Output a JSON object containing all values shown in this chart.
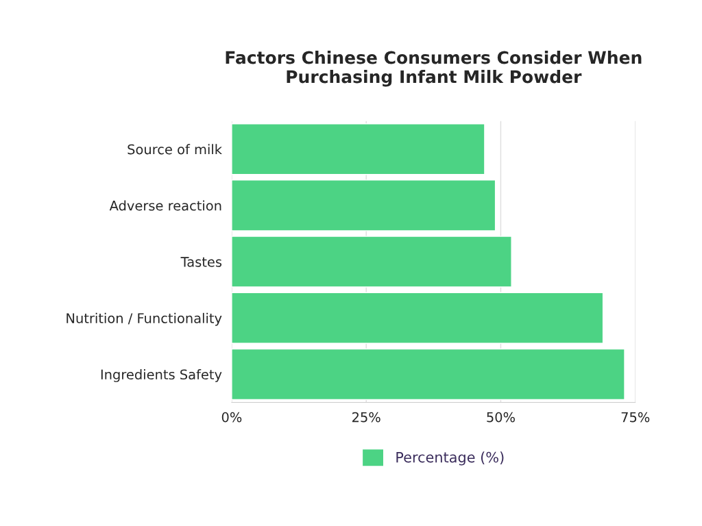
{
  "chart_data": {
    "type": "bar",
    "orientation": "horizontal",
    "title": "Factors Chinese Consumers Consider When\nPurchasing Infant Milk Powder",
    "categories": [
      "Source of milk",
      "Adverse reaction",
      "Tastes",
      "Nutrition / Functionality",
      "Ingredients Safety"
    ],
    "series": [
      {
        "name": "Percentage (%)",
        "color": "#4cd384",
        "values": [
          47,
          49,
          52,
          69,
          73
        ]
      }
    ],
    "xlim": [
      0,
      75
    ],
    "xticks": [
      {
        "value": 0,
        "label": "0%"
      },
      {
        "value": 25,
        "label": "25%"
      },
      {
        "value": 50,
        "label": "50%"
      },
      {
        "value": 75,
        "label": "75%"
      }
    ],
    "grid": "x",
    "legend": "bottom"
  }
}
